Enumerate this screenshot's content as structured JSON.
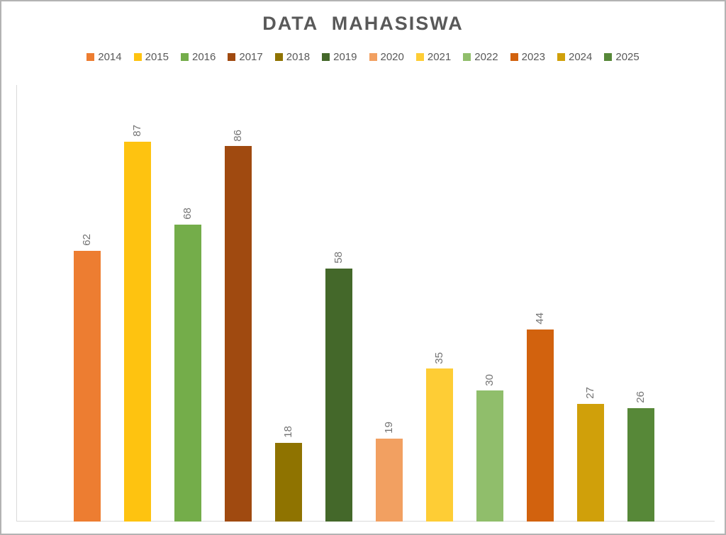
{
  "title": "DATA MAHASISWA",
  "chart_data": {
    "type": "bar",
    "title": "DATA MAHASISWA",
    "categories": [
      "2014",
      "2015",
      "2016",
      "2017",
      "2018",
      "2019",
      "2020",
      "2021",
      "2022",
      "2023",
      "2024",
      "2025"
    ],
    "values": [
      62,
      87,
      68,
      86,
      18,
      58,
      19,
      35,
      30,
      44,
      27,
      26
    ],
    "bar_colors": [
      "#ED7D31",
      "#FEC310",
      "#74AD4A",
      "#A04A10",
      "#8F7300",
      "#44682A",
      "#F2A061",
      "#FECD35",
      "#90BE6B",
      "#D2620E",
      "#D0A00A",
      "#578838"
    ],
    "xlabel": "",
    "ylabel": "",
    "ylim": [
      0,
      100
    ],
    "grid": false,
    "legend_position": "top",
    "data_labels": "rotated-90-up",
    "colors": {
      "title_text": "#595959",
      "legend_text": "#595959",
      "data_label_text": "#737373",
      "axis_line": "#D9D9D9",
      "background": "#FFFFFF",
      "frame_border": "#B3B3B3"
    }
  }
}
